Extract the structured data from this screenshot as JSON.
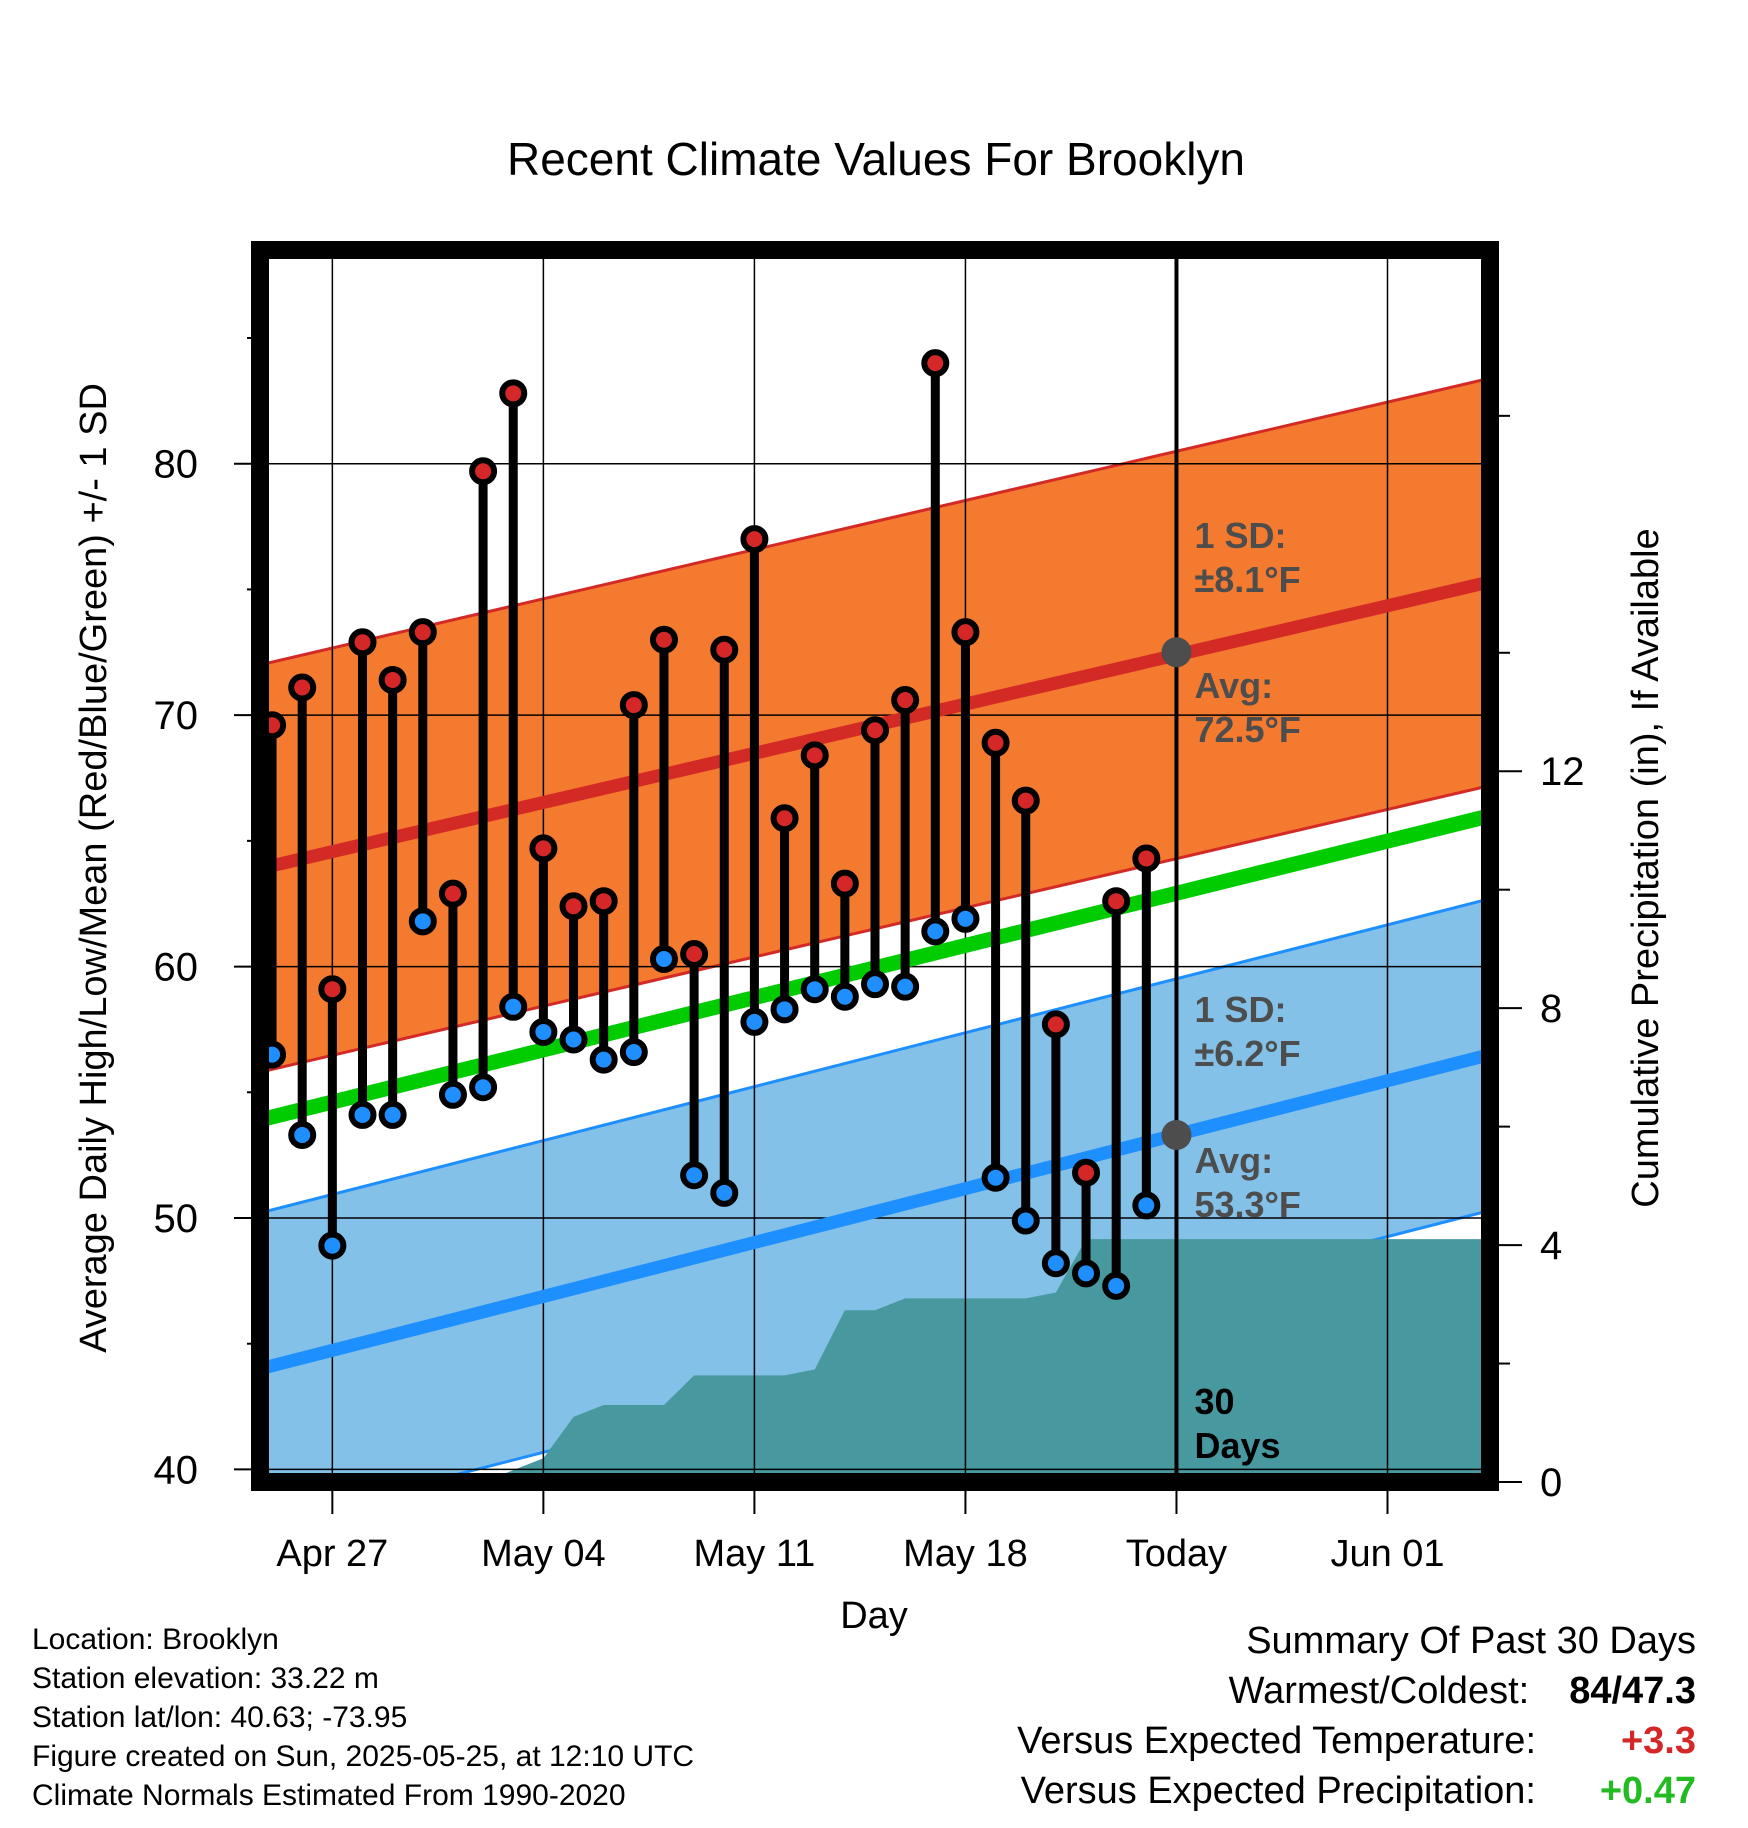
{
  "chart_data": {
    "type": "line",
    "title": "Recent Climate Values For Brooklyn",
    "xlabel": "Day",
    "ylabel": "Average Daily High/Low/Mean (Red/Blue/Green) +/- 1 SD",
    "y2label": "Cumulative Precipitation (in), If Available",
    "ylim": [
      39.5,
      88.5
    ],
    "y2lim": [
      0,
      20.8
    ],
    "yticks": [
      40,
      50,
      60,
      70,
      80
    ],
    "y2ticks": [
      0,
      4,
      8,
      12
    ],
    "xlim": [
      0.6,
      41.4
    ],
    "xticks": [
      {
        "x": 3,
        "label": "Apr 27"
      },
      {
        "x": 10,
        "label": "May 04"
      },
      {
        "x": 17,
        "label": "May 11"
      },
      {
        "x": 24,
        "label": "May 18"
      },
      {
        "x": 31,
        "label": "Today"
      },
      {
        "x": 38,
        "label": "Jun 01"
      }
    ],
    "today_x": 31,
    "days": [
      1,
      2,
      3,
      4,
      5,
      6,
      7,
      8,
      9,
      10,
      11,
      12,
      13,
      14,
      15,
      16,
      17,
      18,
      19,
      20,
      21,
      22,
      23,
      24,
      25,
      26,
      27,
      28,
      29,
      30
    ],
    "highs": [
      69.6,
      71.1,
      59.1,
      72.9,
      71.4,
      73.3,
      62.9,
      79.7,
      82.8,
      64.7,
      62.4,
      62.6,
      70.4,
      73.0,
      60.5,
      72.6,
      77.0,
      65.9,
      68.4,
      63.3,
      69.4,
      70.6,
      84.0,
      73.3,
      68.9,
      66.6,
      57.7,
      51.8,
      62.6,
      64.3
    ],
    "lows": [
      56.5,
      53.3,
      48.9,
      54.1,
      54.1,
      61.8,
      54.9,
      55.2,
      58.4,
      57.4,
      57.1,
      56.3,
      56.6,
      60.3,
      51.7,
      51.0,
      57.8,
      58.3,
      59.1,
      58.8,
      59.3,
      59.2,
      61.4,
      61.9,
      51.6,
      49.9,
      48.2,
      47.8,
      47.3,
      50.5
    ],
    "normal_high": [
      63.9,
      75.3
    ],
    "normal_low": [
      44.0,
      56.5
    ],
    "normal_mean": [
      53.9,
      66.0
    ],
    "high_sd": 8.1,
    "low_sd": 6.2,
    "precip_cumulative": [
      0,
      0,
      0,
      0,
      0,
      0,
      0,
      0,
      0.2,
      0.4,
      1.1,
      1.3,
      1.3,
      1.3,
      1.8,
      1.8,
      1.8,
      1.8,
      1.9,
      2.9,
      2.9,
      3.1,
      3.1,
      3.1,
      3.1,
      3.1,
      3.2,
      4.1,
      4.1,
      4.1,
      4.1
    ],
    "annotations": {
      "high_sd_label": "1 SD:",
      "high_sd_value": "±8.1°F",
      "high_avg_label": "Avg:",
      "high_avg_value": "72.5°F",
      "high_avg": 72.5,
      "low_sd_label": "1 SD:",
      "low_sd_value": "±6.2°F",
      "low_avg_label": "Avg:",
      "low_avg_value": "53.3°F",
      "low_avg": 53.3,
      "days_label_1": "30",
      "days_label_2": "Days"
    },
    "colors": {
      "high_band": "#f47a30",
      "high_line": "#d42a25",
      "low_band": "#84c1e8",
      "low_line": "#1e8fff",
      "mean_line": "#00cc00",
      "precip": "#47999f",
      "high_dot": "#d62728",
      "low_dot": "#1f8fff",
      "annotation": "#4d4d4d"
    }
  },
  "footer": {
    "location": "Location: Brooklyn",
    "elevation": "Station elevation: 33.22 m",
    "latlon": "Station lat/lon: 40.63; -73.95",
    "created": "Figure created on Sun, 2025-05-25, at 12:10 UTC",
    "normals": "Climate Normals Estimated From 1990-2020"
  },
  "summary": {
    "title": "Summary Of Past 30 Days",
    "warmest_label": "Warmest/Coldest:",
    "warmest_value": "84/47.3",
    "temp_label": "Versus Expected Temperature:",
    "temp_value": "+3.3",
    "precip_label": "Versus Expected Precipitation:",
    "precip_value": "+0.47"
  }
}
